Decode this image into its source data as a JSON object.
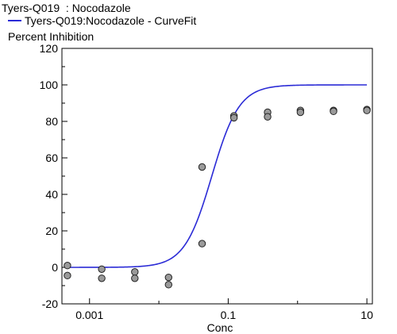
{
  "chart_data": {
    "type": "scatter",
    "title": "Tyers-Q019  : Nocodazole",
    "xlabel": "Conc",
    "ylabel": "Percent Inhibition",
    "xscale": "log",
    "xlim": [
      0.0004,
      12
    ],
    "ylim": [
      -20,
      120
    ],
    "xticks": [
      {
        "value": 0.001,
        "label": "0.001"
      },
      {
        "value": 0.1,
        "label": "0.1"
      },
      {
        "value": 10,
        "label": "10"
      }
    ],
    "yticks": [
      -20,
      0,
      20,
      40,
      60,
      80,
      100,
      120
    ],
    "legend": {
      "placement": "top-left",
      "entries": [
        "Tyers-Q019:Nocodazole - CurveFit"
      ]
    },
    "grid": false,
    "colors": {
      "fit_line": "#2b2bd6",
      "point_fill": "#9a9a9a",
      "point_edge": "#222222"
    },
    "series": [
      {
        "type": "points",
        "x": [
          0.00048,
          0.00048,
          0.0015,
          0.0015,
          0.0045,
          0.0045,
          0.0138,
          0.0138,
          0.042,
          0.042,
          0.121,
          0.121,
          0.37,
          0.37,
          1.1,
          1.1,
          3.3,
          3.3,
          10,
          10
        ],
        "y": [
          1,
          -4.5,
          -1,
          -6,
          -2.5,
          -6,
          -5.5,
          -9.5,
          55,
          13,
          83,
          82,
          85,
          82.5,
          86,
          85,
          86,
          85.5,
          86.5,
          86
        ]
      },
      {
        "name": "Tyers-Q019:Nocodazole - CurveFit",
        "type": "line",
        "model": "4PL",
        "bottom": 0,
        "top": 100,
        "ec50": 0.058,
        "hill": 2.2,
        "x_range": [
          0.00048,
          10
        ]
      }
    ]
  }
}
